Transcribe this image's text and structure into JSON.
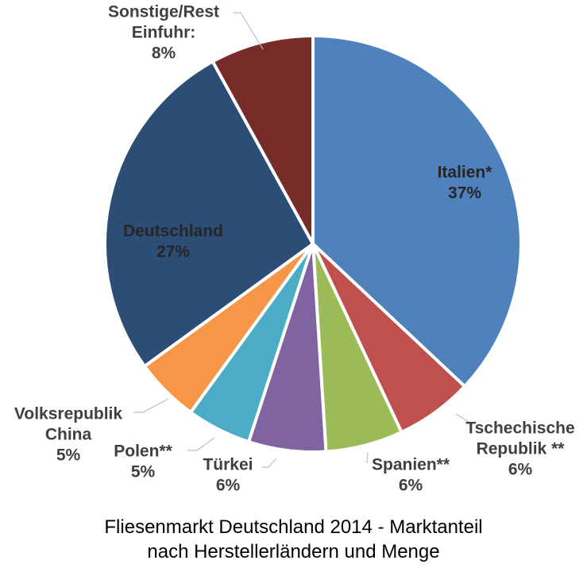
{
  "chart_data": {
    "type": "pie",
    "title": "",
    "slices": [
      {
        "label_lines": [
          "Italien*"
        ],
        "value_label": "37%",
        "value": 37,
        "color": "#4f81bd"
      },
      {
        "label_lines": [
          "Tschechische",
          "Republik **"
        ],
        "value_label": "6%",
        "value": 6,
        "color": "#c0504d"
      },
      {
        "label_lines": [
          "Spanien**"
        ],
        "value_label": "6%",
        "value": 6,
        "color": "#9bbb59"
      },
      {
        "label_lines": [
          "Türkei"
        ],
        "value_label": "6%",
        "value": 6,
        "color": "#8064a2"
      },
      {
        "label_lines": [
          "Polen**"
        ],
        "value_label": "5%",
        "value": 5,
        "color": "#4bacc6"
      },
      {
        "label_lines": [
          "Volksrepublik",
          "China"
        ],
        "value_label": "5%",
        "value": 5,
        "color": "#f79646"
      },
      {
        "label_lines": [
          "Deutschland"
        ],
        "value_label": "27%",
        "value": 27,
        "color": "#2c4d75"
      },
      {
        "label_lines": [
          "Sonstige/Rest",
          "Einfuhr:"
        ],
        "value_label": "8%",
        "value": 8,
        "color": "#772c2a"
      }
    ]
  },
  "caption": {
    "line1": "Fliesenmarkt Deutschland 2014 - Marktanteil",
    "line2": "nach Herstellerländern und Menge"
  }
}
